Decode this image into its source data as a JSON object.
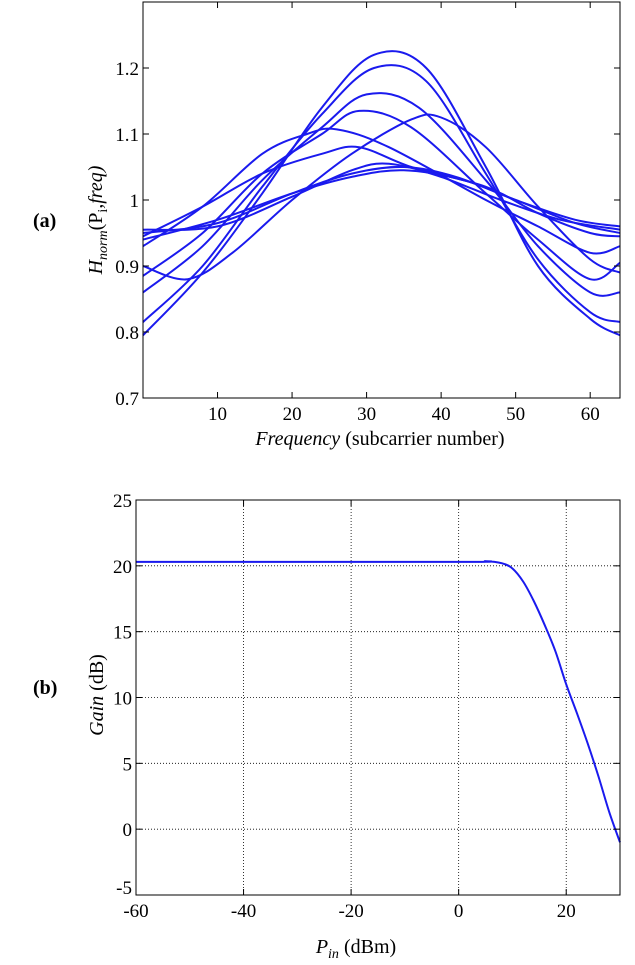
{
  "chart_data": [
    {
      "type": "line",
      "panel_label": "(a)",
      "ylabel_main": "H",
      "ylabel_sub": "norm",
      "ylabel_rest": "(P",
      "ylabel_sub2": "i",
      "ylabel_tail": ",freq)",
      "xlabel_italic": "Frequency",
      "xlabel_rest": " (subcarrier number)",
      "xlim": [
        0,
        64
      ],
      "ylim": [
        0.7,
        1.3
      ],
      "xticks": [
        "10",
        "20",
        "30",
        "40",
        "50",
        "60"
      ],
      "yticks": [
        "0.7",
        "0.8",
        "0.9",
        "1",
        "1.1",
        "1.2"
      ],
      "grid": false,
      "color": "#1a1aee",
      "series": [
        {
          "values": [
            [
              0,
              0.795
            ],
            [
              8,
              0.89
            ],
            [
              16,
              1.01
            ],
            [
              24,
              1.14
            ],
            [
              31,
              1.22
            ],
            [
              38,
              1.2
            ],
            [
              46,
              1.05
            ],
            [
              53,
              0.9
            ],
            [
              60,
              0.82
            ],
            [
              64,
              0.795
            ]
          ]
        },
        {
          "values": [
            [
              0,
              0.815
            ],
            [
              8,
              0.9
            ],
            [
              16,
              1.02
            ],
            [
              24,
              1.13
            ],
            [
              31,
              1.2
            ],
            [
              38,
              1.18
            ],
            [
              46,
              1.04
            ],
            [
              53,
              0.91
            ],
            [
              60,
              0.83
            ],
            [
              64,
              0.815
            ]
          ]
        },
        {
          "values": [
            [
              0,
              0.86
            ],
            [
              8,
              0.93
            ],
            [
              16,
              1.03
            ],
            [
              24,
              1.11
            ],
            [
              30,
              1.16
            ],
            [
              37,
              1.14
            ],
            [
              46,
              1.03
            ],
            [
              53,
              0.93
            ],
            [
              60,
              0.86
            ],
            [
              64,
              0.86
            ]
          ]
        },
        {
          "values": [
            [
              0,
              0.885
            ],
            [
              8,
              0.95
            ],
            [
              16,
              1.04
            ],
            [
              24,
              1.1
            ],
            [
              29,
              1.135
            ],
            [
              36,
              1.11
            ],
            [
              46,
              1.01
            ],
            [
              53,
              0.94
            ],
            [
              60,
              0.88
            ],
            [
              64,
              0.905
            ]
          ]
        },
        {
          "values": [
            [
              0,
              0.93
            ],
            [
              8,
              0.99
            ],
            [
              16,
              1.07
            ],
            [
              22,
              1.1
            ],
            [
              26,
              1.107
            ],
            [
              33,
              1.08
            ],
            [
              46,
              1.0
            ],
            [
              53,
              0.96
            ],
            [
              60,
              0.92
            ],
            [
              64,
              0.93
            ]
          ]
        },
        {
          "values": [
            [
              0,
              0.9
            ],
            [
              6,
              0.88
            ],
            [
              12,
              0.92
            ],
            [
              20,
              1.0
            ],
            [
              28,
              1.07
            ],
            [
              36,
              1.122
            ],
            [
              40,
              1.125
            ],
            [
              46,
              1.08
            ],
            [
              53,
              0.99
            ],
            [
              60,
              0.91
            ],
            [
              64,
              0.89
            ]
          ]
        },
        {
          "values": [
            [
              0,
              0.945
            ],
            [
              8,
              0.99
            ],
            [
              16,
              1.04
            ],
            [
              24,
              1.07
            ],
            [
              29,
              1.08
            ],
            [
              36,
              1.05
            ],
            [
              46,
              1.02
            ],
            [
              53,
              0.98
            ],
            [
              60,
              0.95
            ],
            [
              64,
              0.945
            ]
          ]
        },
        {
          "values": [
            [
              0,
              0.955
            ],
            [
              10,
              0.96
            ],
            [
              20,
              1.005
            ],
            [
              28,
              1.045
            ],
            [
              33,
              1.055
            ],
            [
              40,
              1.035
            ],
            [
              48,
              1.0
            ],
            [
              56,
              0.97
            ],
            [
              64,
              0.955
            ]
          ]
        },
        {
          "values": [
            [
              0,
              0.95
            ],
            [
              10,
              0.965
            ],
            [
              20,
              1.01
            ],
            [
              28,
              1.04
            ],
            [
              35,
              1.05
            ],
            [
              42,
              1.035
            ],
            [
              50,
              1.0
            ],
            [
              58,
              0.97
            ],
            [
              64,
              0.96
            ]
          ]
        },
        {
          "values": [
            [
              0,
              0.94
            ],
            [
              10,
              0.97
            ],
            [
              20,
              1.01
            ],
            [
              28,
              1.035
            ],
            [
              35,
              1.045
            ],
            [
              43,
              1.03
            ],
            [
              50,
              1.0
            ],
            [
              58,
              0.965
            ],
            [
              64,
              0.95
            ]
          ]
        }
      ]
    },
    {
      "type": "line",
      "panel_label": "(b)",
      "ylabel_italic": "Gain",
      "ylabel_rest": " (dB)",
      "xlabel_main": "P",
      "xlabel_sub": "in",
      "xlabel_rest": " (dBm)",
      "xlim": [
        -60,
        30
      ],
      "ylim": [
        -5,
        25
      ],
      "xticks": [
        "-60",
        "-40",
        "-20",
        "0",
        "20"
      ],
      "yticks": [
        "-5",
        "0",
        "5",
        "10",
        "15",
        "20",
        "25"
      ],
      "grid": true,
      "color": "#1a1aee",
      "series": [
        {
          "values": [
            [
              -60,
              20.3
            ],
            [
              0,
              20.3
            ],
            [
              5,
              20.35
            ],
            [
              8,
              20.2
            ],
            [
              10,
              19.8
            ],
            [
              12,
              18.8
            ],
            [
              14,
              17.3
            ],
            [
              16,
              15.5
            ],
            [
              18,
              13.5
            ],
            [
              20,
              11.0
            ],
            [
              22,
              8.8
            ],
            [
              24,
              6.5
            ],
            [
              26,
              4.0
            ],
            [
              28,
              1.3
            ],
            [
              30,
              -1.0
            ]
          ]
        }
      ]
    }
  ]
}
